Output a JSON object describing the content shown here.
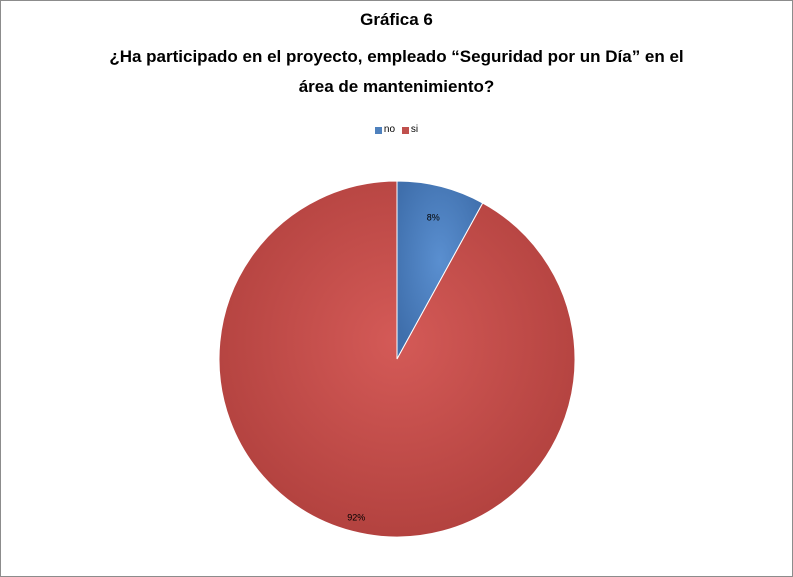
{
  "chart_data": {
    "type": "pie",
    "title": "Gráfica 6",
    "subtitle_lines": [
      "¿Ha participado en el proyecto, empleado “Seguridad por un Día” en el",
      "área de mantenimiento?"
    ],
    "categories": [
      "no",
      "si"
    ],
    "values": [
      8,
      92
    ],
    "value_labels": [
      "8%",
      "92%"
    ],
    "colors": [
      "#4F81BD",
      "#C0504D"
    ],
    "legend_position": "top"
  }
}
